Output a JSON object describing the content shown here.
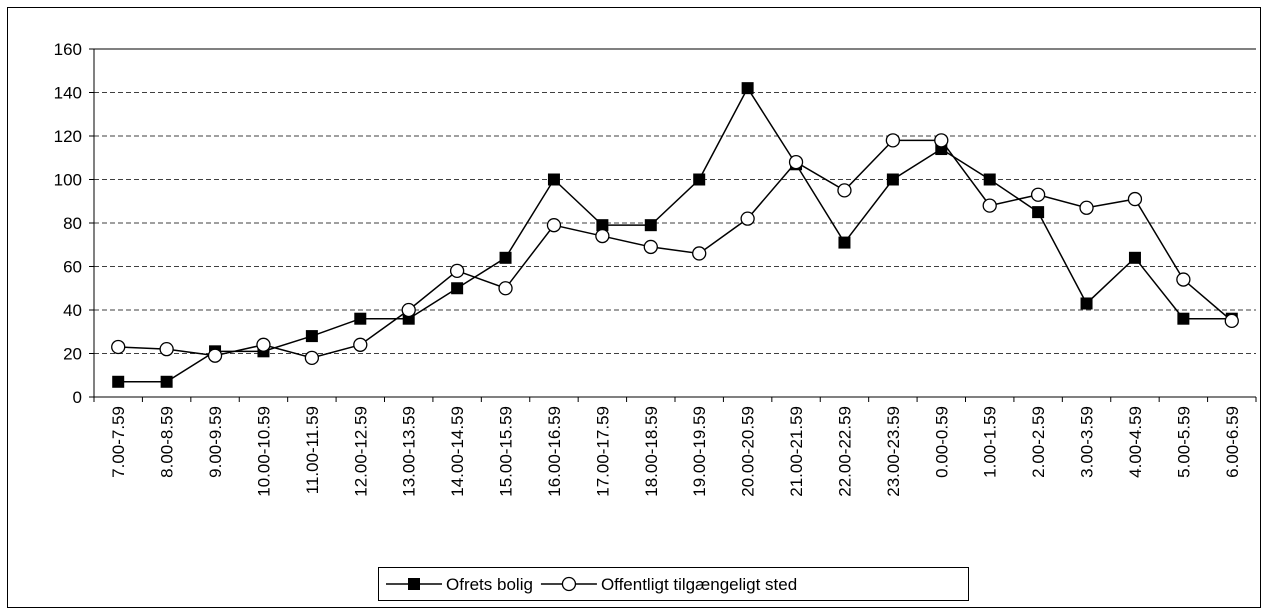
{
  "chart_data": {
    "type": "line",
    "categories": [
      "7.00-7.59",
      "8.00-8.59",
      "9.00-9.59",
      "10.00-10.59",
      "11.00-11.59",
      "12.00-12.59",
      "13.00-13.59",
      "14.00-14.59",
      "15.00-15.59",
      "16.00-16.59",
      "17.00-17.59",
      "18.00-18.59",
      "19.00-19.59",
      "20.00-20.59",
      "21.00-21.59",
      "22.00-22.59",
      "23.00-23.59",
      "0.00-0.59",
      "1.00-1.59",
      "2.00-2.59",
      "3.00-3.59",
      "4.00-4.59",
      "5.00-5.59",
      "6.00-6.59"
    ],
    "series": [
      {
        "name": "Ofrets bolig",
        "color": "#000000",
        "marker": "square",
        "values": [
          7,
          7,
          21,
          21,
          28,
          36,
          36,
          50,
          64,
          100,
          79,
          79,
          100,
          142,
          107,
          71,
          100,
          114,
          100,
          85,
          43,
          64,
          36,
          36
        ]
      },
      {
        "name": "Offentligt tilgængeligt sted",
        "color": "#000000",
        "marker": "circle",
        "values": [
          23,
          22,
          19,
          24,
          18,
          24,
          40,
          58,
          50,
          79,
          74,
          69,
          66,
          82,
          108,
          95,
          118,
          118,
          88,
          93,
          87,
          91,
          54,
          35
        ]
      }
    ],
    "ylim": [
      0,
      160
    ],
    "yticks": [
      0,
      20,
      40,
      60,
      80,
      100,
      120,
      140,
      160
    ],
    "grid": true,
    "legend": "bottom"
  }
}
